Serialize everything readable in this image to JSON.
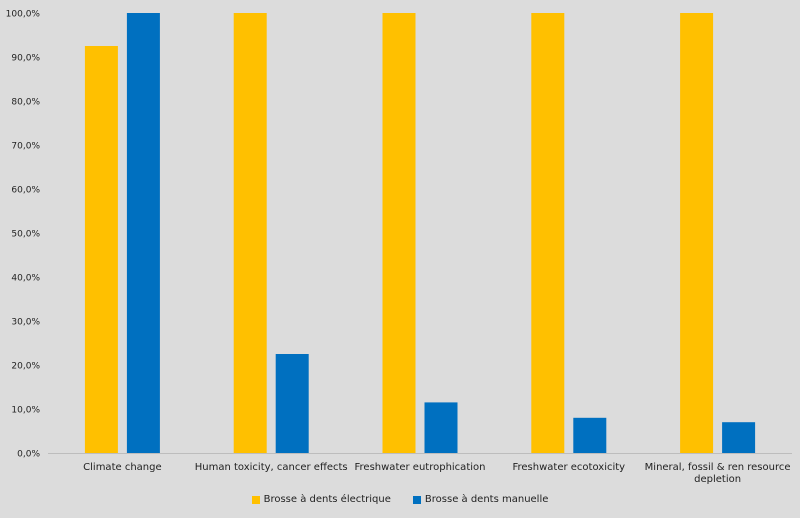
{
  "chart_data": {
    "type": "bar",
    "categories": [
      [
        "Climate change"
      ],
      [
        "Human toxicity, cancer effects"
      ],
      [
        "Freshwater eutrophication"
      ],
      [
        "Freshwater ecotoxicity"
      ],
      [
        "Mineral, fossil & ren resource",
        "depletion"
      ]
    ],
    "series": [
      {
        "name": "Brosse à dents électrique",
        "color": "#ffc000",
        "values": [
          92.5,
          100,
          100,
          100,
          100
        ]
      },
      {
        "name": "Brosse à dents manuelle",
        "color": "#0070c0",
        "values": [
          100,
          22.5,
          11.5,
          8.0,
          7.0
        ]
      }
    ],
    "ylim": [
      0,
      100
    ],
    "y_ticks": [
      "0,0%",
      "10,0%",
      "20,0%",
      "30,0%",
      "40,0%",
      "50,0%",
      "60,0%",
      "70,0%",
      "80,0%",
      "90,0%",
      "100,0%"
    ],
    "grid": false,
    "legend_position": "bottom"
  }
}
